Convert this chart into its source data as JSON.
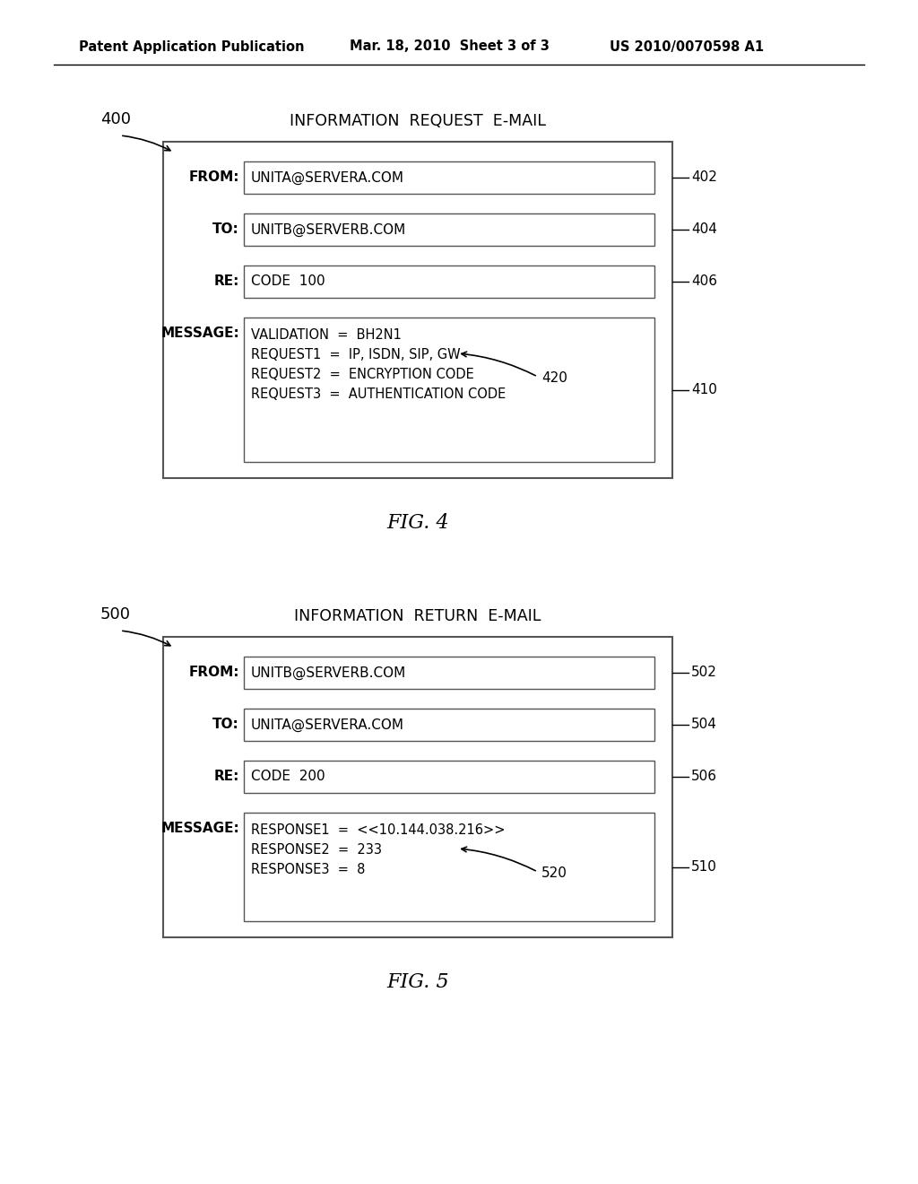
{
  "bg_color": "#ffffff",
  "header_left": "Patent Application Publication",
  "header_mid": "Mar. 18, 2010  Sheet 3 of 3",
  "header_right": "US 2010/0070598 A1",
  "fig4": {
    "label": "400",
    "title": "INFORMATION  REQUEST  E-MAIL",
    "fig_label": "FIG. 4",
    "fields": [
      {
        "label": "FROM:",
        "value": "UNITA@SERVERA.COM",
        "ref": "402"
      },
      {
        "label": "TO:",
        "value": "UNITB@SERVERB.COM",
        "ref": "404"
      },
      {
        "label": "RE:",
        "value": "CODE  100",
        "ref": "406"
      }
    ],
    "message_label": "MESSAGE:",
    "message_ref": "410",
    "message_lines": [
      "VALIDATION  =  BH2N1",
      "REQUEST1  =  IP, ISDN, SIP, GW",
      "REQUEST2  =  ENCRYPTION CODE",
      "REQUEST3  =  AUTHENTICATION CODE"
    ],
    "arrow_label": "420",
    "arrow_line_index": 1
  },
  "fig5": {
    "label": "500",
    "title": "INFORMATION  RETURN  E-MAIL",
    "fig_label": "FIG. 5",
    "fields": [
      {
        "label": "FROM:",
        "value": "UNITB@SERVERB.COM",
        "ref": "502"
      },
      {
        "label": "TO:",
        "value": "UNITA@SERVERA.COM",
        "ref": "504"
      },
      {
        "label": "RE:",
        "value": "CODE  200",
        "ref": "506"
      }
    ],
    "message_label": "MESSAGE:",
    "message_ref": "510",
    "message_lines": [
      "RESPONSE1  =  <<10.144.038.216>>",
      "RESPONSE2  =  233",
      "RESPONSE3  =  8"
    ],
    "arrow_label": "520",
    "arrow_line_index": 1
  }
}
